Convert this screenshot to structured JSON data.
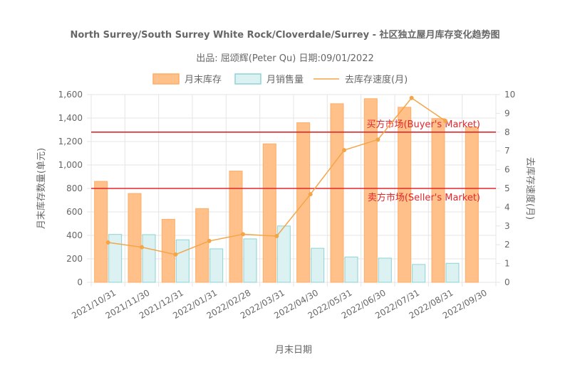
{
  "chart_data": {
    "type": "bar",
    "title": "North Surrey/South Surrey White Rock/Cloverdale/Surrey - 社区独立屋月库存变化趋势图",
    "subtitle": "出品: 屈颂辉(Peter Qu) 日期:09/01/2022",
    "xlabel": "月末日期",
    "ylabel": "月末库存数量(单元)",
    "y2label": "去库存速度(月)",
    "categories": [
      "2021/10/31",
      "2021/11/30",
      "2021/12/31",
      "2022/01/31",
      "2022/02/28",
      "2022/03/31",
      "2022/04/30",
      "2022/05/31",
      "2022/06/30",
      "2022/07/31",
      "2022/08/31",
      "2022/09/30"
    ],
    "ylim": [
      0,
      1600
    ],
    "y2lim": [
      0,
      10
    ],
    "yticks": [
      "0",
      "200",
      "400",
      "600",
      "800",
      "1,000",
      "1,200",
      "1,400",
      "1,600"
    ],
    "y2ticks": [
      "0",
      "1",
      "2",
      "3",
      "4",
      "5",
      "6",
      "7",
      "8",
      "9",
      "10"
    ],
    "legend_position": "top",
    "grid": true,
    "series": [
      {
        "name": "月末库存",
        "kind": "bar",
        "axis": "left",
        "color": "#ffc08a",
        "border": "#ffad66",
        "values": [
          860,
          757,
          537,
          628,
          948,
          1180,
          1360,
          1522,
          1565,
          1492,
          1395,
          1322
        ]
      },
      {
        "name": "月销售量",
        "kind": "bar",
        "axis": "left",
        "color": "#dbf1f2",
        "border": "#8dd3d6",
        "values": [
          408,
          406,
          362,
          285,
          370,
          480,
          290,
          216,
          206,
          152,
          162,
          null
        ]
      },
      {
        "name": "去库存速度(月)",
        "kind": "line",
        "axis": "right",
        "color": "#f4a548",
        "values": [
          2.12,
          1.87,
          1.48,
          2.2,
          2.56,
          2.46,
          4.69,
          7.04,
          7.6,
          9.82,
          8.6,
          null
        ]
      }
    ],
    "reference_lines": [
      {
        "label": "买方市场(Buyer's Market)",
        "value": 8,
        "axis": "right",
        "color": "#e3262b"
      },
      {
        "label": "卖方市场(Seller's Market)",
        "value": 5,
        "axis": "right",
        "color": "#e3262b"
      }
    ]
  }
}
